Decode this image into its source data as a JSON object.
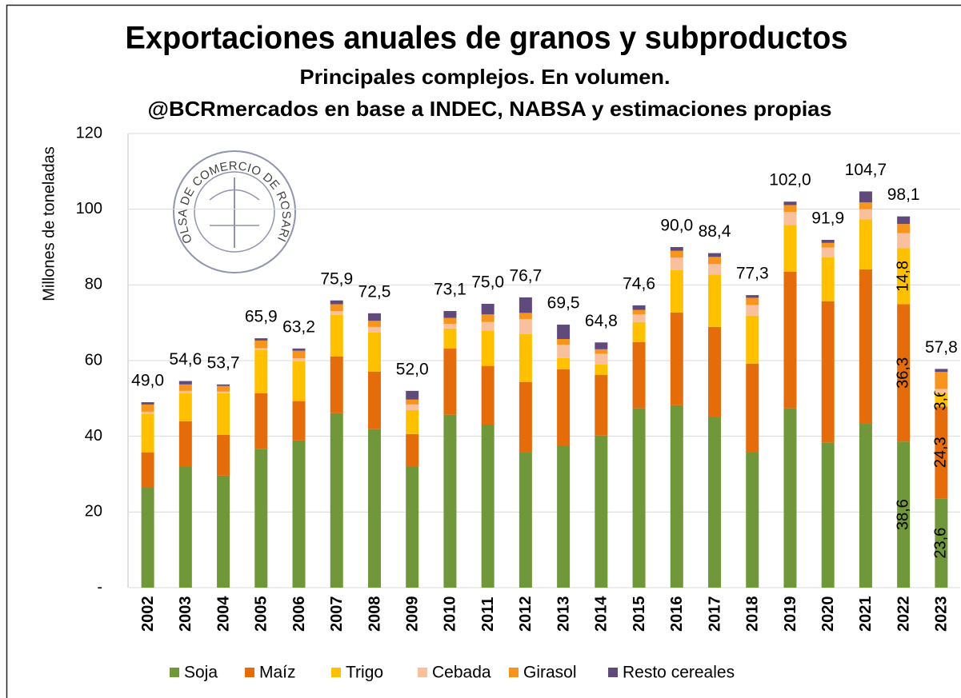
{
  "chart_data": {
    "type": "stacked_bar",
    "title": "Exportaciones anuales de granos y subproductos",
    "subtitle": "Principales complejos. En volumen.",
    "source": "@BCRmercados en base a INDEC, NABSA y estimaciones propias",
    "logo_text": "BOLSA DE COMERCIO DE ROSARIO",
    "y_label": "Millones de toneladas",
    "categories": [
      "2002",
      "2003",
      "2004",
      "2005",
      "2006",
      "2007",
      "2008",
      "2009",
      "2010",
      "2011",
      "2012",
      "2013",
      "2014",
      "2015",
      "2016",
      "2017",
      "2018",
      "2019",
      "2020",
      "2021",
      "2022",
      "2023"
    ],
    "series": [
      {
        "name": "Soja",
        "color": "#70973a",
        "values": [
          26.4,
          32.1,
          29.6,
          36.6,
          38.9,
          46.1,
          41.9,
          32.1,
          45.7,
          43.1,
          35.9,
          37.6,
          40.2,
          47.4,
          48.2,
          45.0,
          35.7,
          47.4,
          38.3,
          43.3,
          38.6,
          23.6
        ],
        "value_labels": [
          null,
          null,
          null,
          null,
          null,
          null,
          null,
          null,
          null,
          null,
          null,
          null,
          null,
          null,
          null,
          null,
          null,
          null,
          null,
          null,
          "38,6",
          "23,6"
        ]
      },
      {
        "name": "Maíz",
        "color": "#e46c0a",
        "values": [
          9.3,
          11.9,
          10.8,
          14.8,
          10.4,
          15.0,
          15.2,
          8.5,
          17.5,
          15.5,
          18.4,
          20.1,
          16.0,
          17.5,
          24.5,
          23.9,
          23.5,
          36.1,
          37.4,
          40.8,
          36.3,
          24.3
        ],
        "value_labels": [
          null,
          null,
          null,
          null,
          null,
          null,
          null,
          null,
          null,
          null,
          null,
          null,
          null,
          null,
          null,
          null,
          null,
          null,
          null,
          null,
          "36,3",
          "24,3"
        ]
      },
      {
        "name": "Trigo",
        "color": "#ffc000",
        "values": [
          10.2,
          7.4,
          11.0,
          11.4,
          10.5,
          11.0,
          10.3,
          6.3,
          5.3,
          9.3,
          12.7,
          3.0,
          2.8,
          5.3,
          11.2,
          13.8,
          12.7,
          12.3,
          11.6,
          13.2,
          14.8,
          3.6
        ],
        "value_labels": [
          null,
          null,
          null,
          null,
          null,
          null,
          null,
          null,
          null,
          null,
          null,
          null,
          null,
          null,
          null,
          null,
          null,
          null,
          null,
          null,
          "14,8",
          "3,6"
        ]
      },
      {
        "name": "Cebada",
        "color": "#f9c09e",
        "values": [
          0.6,
          0.6,
          0.4,
          0.5,
          0.8,
          1.0,
          1.5,
          1.5,
          1.2,
          2.3,
          4.0,
          3.5,
          2.8,
          2.0,
          3.3,
          2.8,
          2.8,
          3.5,
          2.6,
          2.7,
          4.0,
          1.0
        ]
      },
      {
        "name": "Girasol",
        "color": "#f7941d",
        "values": [
          1.9,
          1.7,
          1.5,
          2.0,
          2.0,
          1.8,
          1.6,
          1.3,
          1.6,
          2.0,
          1.6,
          1.5,
          1.2,
          1.2,
          1.8,
          1.9,
          1.9,
          1.8,
          1.2,
          1.8,
          2.4,
          4.5
        ]
      },
      {
        "name": "Resto cereales",
        "color": "#604a7b",
        "values": [
          0.6,
          0.9,
          0.4,
          0.6,
          0.6,
          1.0,
          2.0,
          2.3,
          1.8,
          2.8,
          4.1,
          3.8,
          1.8,
          1.2,
          1.0,
          1.0,
          0.7,
          0.9,
          0.8,
          2.9,
          2.0,
          0.8
        ]
      }
    ],
    "totals": [
      49.0,
      54.6,
      53.7,
      65.9,
      63.2,
      75.9,
      72.5,
      52.0,
      73.1,
      75.0,
      76.7,
      69.5,
      64.8,
      74.6,
      90.0,
      88.4,
      77.3,
      102.0,
      91.9,
      104.7,
      98.1,
      57.8
    ],
    "total_labels": [
      "49,0",
      "54,6",
      "53,7",
      "65,9",
      "63,2",
      "75,9",
      "72,5",
      "52,0",
      "73,1",
      "75,0",
      "76,7",
      "69,5",
      "64,8",
      "74,6",
      "90,0",
      "88,4",
      "77,3",
      "102,0",
      "91,9",
      "104,7",
      "98,1",
      "57,8"
    ],
    "ylim": [
      0,
      120
    ],
    "yticks": [
      {
        "value": 0,
        "label": "-"
      },
      20,
      40,
      60,
      80,
      100,
      120
    ],
    "grid": true
  }
}
